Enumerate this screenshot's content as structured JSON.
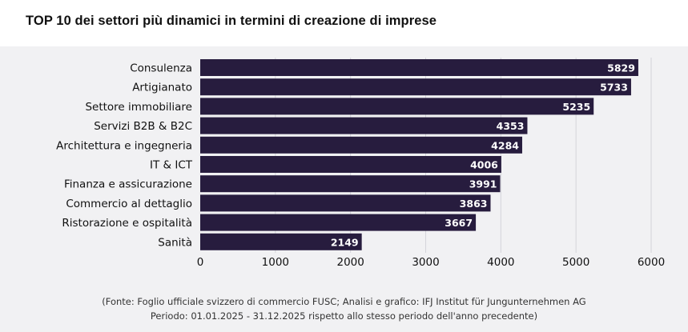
{
  "title": "TOP 10 dei settori più dinamici in termini di creazione di imprese",
  "chart_data": {
    "type": "bar",
    "orientation": "horizontal",
    "categories": [
      "Consulenza",
      "Artigianato",
      "Settore immobiliare",
      "Servizi B2B & B2C",
      "Architettura e ingegneria",
      "IT & ICT",
      "Finanza e assicurazione",
      "Commercio al dettaglio",
      "Ristorazione e ospitalità",
      "Sanità"
    ],
    "values": [
      5829,
      5733,
      5235,
      4353,
      4284,
      4006,
      3991,
      3863,
      3667,
      2149
    ],
    "xlim": [
      0,
      6000
    ],
    "xticks": [
      0,
      1000,
      2000,
      3000,
      4000,
      5000,
      6000
    ],
    "grid": true,
    "data_labels": true,
    "bar_color": "#271c3e",
    "grid_color": "#d4d4da",
    "background_color": "#f1f1f3"
  },
  "source": {
    "line1": "(Fonte: Foglio ufficiale svizzero di commercio FUSC; Analisi e grafico: IFJ Institut für Jungunternehmen AG",
    "line2": "Periodo: 01.01.2025 - 31.12.2025 rispetto allo stesso periodo dell'anno precedente)"
  }
}
